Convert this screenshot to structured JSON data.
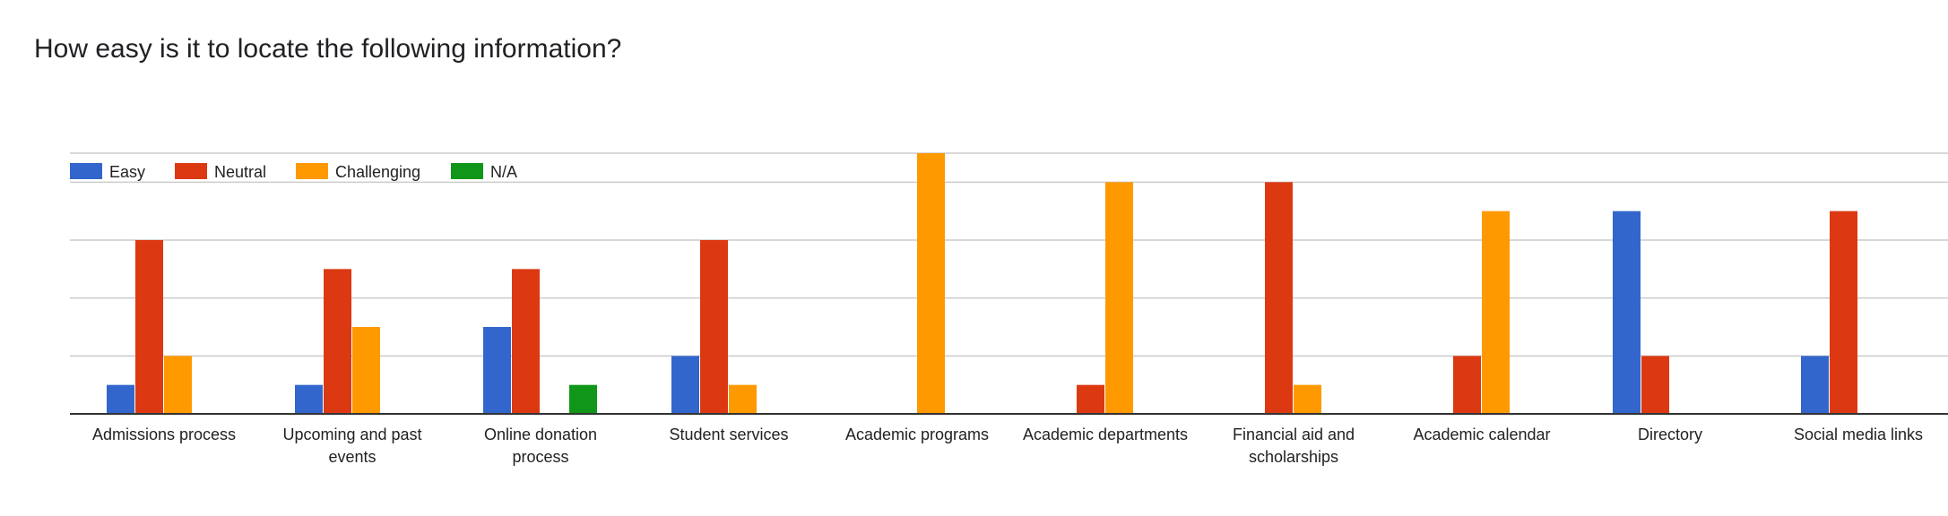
{
  "title": "How easy is it to locate the following information?",
  "colors": {
    "easy": "#3366cc",
    "neutral": "#dc3912",
    "challenging": "#ff9900",
    "na": "#109618",
    "grid": "#cccccc",
    "axis": "#333333"
  },
  "chart_data": {
    "type": "bar",
    "title": "How easy is it to locate the following information?",
    "xlabel": "",
    "ylabel": "",
    "ylim": [
      0,
      9
    ],
    "grid": true,
    "legend_position": "top-left",
    "categories": [
      [
        "Admissions process"
      ],
      [
        "Upcoming and past",
        "events"
      ],
      [
        "Online donation",
        "process"
      ],
      [
        "Student services"
      ],
      [
        "Academic programs"
      ],
      [
        "Academic departments"
      ],
      [
        "Financial aid and",
        "scholarships"
      ],
      [
        "Academic calendar"
      ],
      [
        "Directory"
      ],
      [
        "Social media links"
      ]
    ],
    "series": [
      {
        "name": "Easy",
        "color": "#3366cc",
        "values": [
          1,
          1,
          3,
          2,
          0,
          0,
          0,
          0,
          7,
          2
        ]
      },
      {
        "name": "Neutral",
        "color": "#dc3912",
        "values": [
          6,
          5,
          5,
          6,
          0,
          1,
          8,
          2,
          2,
          7
        ]
      },
      {
        "name": "Challenging",
        "color": "#ff9900",
        "values": [
          2,
          3,
          0,
          1,
          9,
          8,
          1,
          7,
          0,
          0
        ]
      },
      {
        "name": "N/A",
        "color": "#109618",
        "values": [
          0,
          0,
          1,
          0,
          0,
          0,
          0,
          0,
          0,
          0
        ]
      }
    ]
  }
}
